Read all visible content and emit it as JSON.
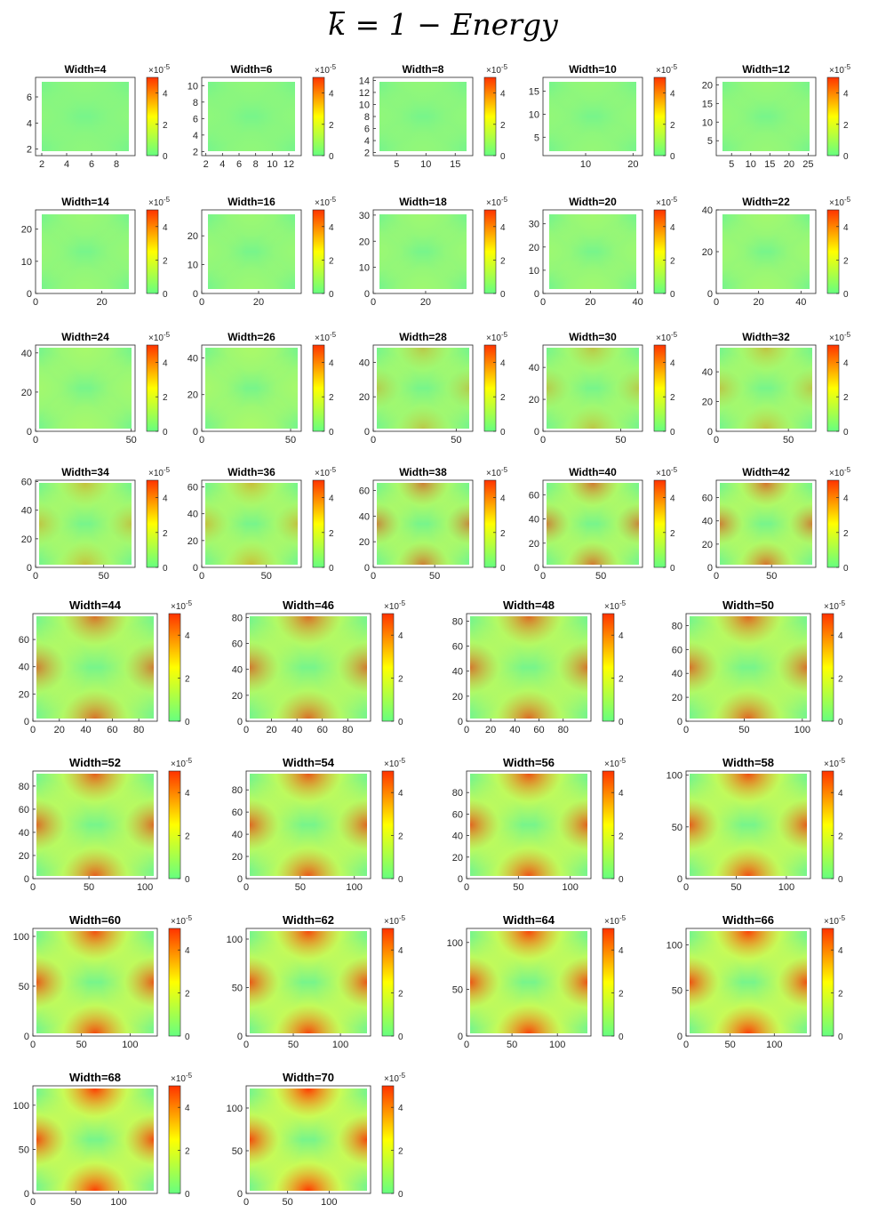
{
  "figure": {
    "title_symbol": "k",
    "title_rest": " = 1  − Energy"
  },
  "colorbar": {
    "exponent_label": "×10",
    "exponent": "-5",
    "ticks": [
      "0",
      "2",
      "4"
    ],
    "range": [
      0,
      5
    ],
    "colors": [
      "#66ff80",
      "#ffff00",
      "#ff3300"
    ]
  },
  "chart_data": [
    {
      "type": "heatmap",
      "title": "Width=4",
      "xticks": [
        "2",
        "4",
        "6",
        "8"
      ],
      "yticks": [
        "2",
        "4",
        "6"
      ],
      "xlim": [
        1.5,
        9.5
      ],
      "ylim": [
        1.5,
        7.5
      ],
      "max_energy": 0.2
    },
    {
      "type": "heatmap",
      "title": "Width=6",
      "xticks": [
        "2",
        "4",
        "6",
        "8",
        "10",
        "12"
      ],
      "yticks": [
        "2",
        "4",
        "6",
        "8",
        "10"
      ],
      "xlim": [
        1.5,
        13.5
      ],
      "ylim": [
        1.5,
        11
      ],
      "max_energy": 0.22
    },
    {
      "type": "heatmap",
      "title": "Width=8",
      "xticks": [
        "5",
        "10",
        "15"
      ],
      "yticks": [
        "2",
        "4",
        "6",
        "8",
        "10",
        "12",
        "14"
      ],
      "xlim": [
        1,
        18
      ],
      "ylim": [
        1.5,
        14.5
      ],
      "max_energy": 0.24
    },
    {
      "type": "heatmap",
      "title": "Width=10",
      "xticks": [
        "10",
        "20"
      ],
      "yticks": [
        "5",
        "10",
        "15"
      ],
      "xlim": [
        1,
        22
      ],
      "ylim": [
        1,
        18
      ],
      "max_energy": 0.26
    },
    {
      "type": "heatmap",
      "title": "Width=12",
      "xticks": [
        "5",
        "10",
        "15",
        "20",
        "25"
      ],
      "yticks": [
        "5",
        "10",
        "15",
        "20"
      ],
      "xlim": [
        1,
        27
      ],
      "ylim": [
        1,
        22
      ],
      "max_energy": 0.28
    },
    {
      "type": "heatmap",
      "title": "Width=14",
      "xticks": [
        "0",
        "20"
      ],
      "yticks": [
        "0",
        "10",
        "20"
      ],
      "xlim": [
        0,
        30
      ],
      "ylim": [
        0,
        26
      ],
      "max_energy": 0.3
    },
    {
      "type": "heatmap",
      "title": "Width=16",
      "xticks": [
        "0",
        "20"
      ],
      "yticks": [
        "0",
        "10",
        "20"
      ],
      "xlim": [
        0,
        35
      ],
      "ylim": [
        0,
        29
      ],
      "max_energy": 0.32
    },
    {
      "type": "heatmap",
      "title": "Width=18",
      "xticks": [
        "0",
        "20"
      ],
      "yticks": [
        "0",
        "10",
        "20",
        "30"
      ],
      "xlim": [
        0,
        38
      ],
      "ylim": [
        0,
        32
      ],
      "max_energy": 0.34
    },
    {
      "type": "heatmap",
      "title": "Width=20",
      "xticks": [
        "0",
        "20",
        "40"
      ],
      "yticks": [
        "0",
        "10",
        "20",
        "30"
      ],
      "xlim": [
        0,
        42
      ],
      "ylim": [
        0,
        36
      ],
      "max_energy": 0.36
    },
    {
      "type": "heatmap",
      "title": "Width=22",
      "xticks": [
        "0",
        "20",
        "40"
      ],
      "yticks": [
        "0",
        "20",
        "40"
      ],
      "xlim": [
        0,
        47
      ],
      "ylim": [
        0,
        40
      ],
      "max_energy": 0.38
    },
    {
      "type": "heatmap",
      "title": "Width=24",
      "xticks": [
        "0",
        "50"
      ],
      "yticks": [
        "0",
        "20",
        "40"
      ],
      "xlim": [
        0,
        52
      ],
      "ylim": [
        0,
        44
      ],
      "max_energy": 0.42
    },
    {
      "type": "heatmap",
      "title": "Width=26",
      "xticks": [
        "0",
        "50"
      ],
      "yticks": [
        "0",
        "20",
        "40"
      ],
      "xlim": [
        0,
        56
      ],
      "ylim": [
        0,
        47
      ],
      "max_energy": 0.45
    },
    {
      "type": "heatmap",
      "title": "Width=28",
      "xticks": [
        "0",
        "50"
      ],
      "yticks": [
        "0",
        "20",
        "40"
      ],
      "xlim": [
        0,
        60
      ],
      "ylim": [
        0,
        50
      ],
      "max_energy": 0.48
    },
    {
      "type": "heatmap",
      "title": "Width=30",
      "xticks": [
        "0",
        "50"
      ],
      "yticks": [
        "0",
        "20",
        "40"
      ],
      "xlim": [
        0,
        64
      ],
      "ylim": [
        0,
        54
      ],
      "max_energy": 0.5
    },
    {
      "type": "heatmap",
      "title": "Width=32",
      "xticks": [
        "0",
        "50"
      ],
      "yticks": [
        "0",
        "20",
        "40"
      ],
      "xlim": [
        0,
        69
      ],
      "ylim": [
        0,
        58
      ],
      "max_energy": 0.53
    },
    {
      "type": "heatmap",
      "title": "Width=34",
      "xticks": [
        "0",
        "50"
      ],
      "yticks": [
        "0",
        "20",
        "40",
        "60"
      ],
      "xlim": [
        0,
        73
      ],
      "ylim": [
        0,
        61
      ],
      "max_energy": 0.56
    },
    {
      "type": "heatmap",
      "title": "Width=36",
      "xticks": [
        "0",
        "50"
      ],
      "yticks": [
        "0",
        "20",
        "40",
        "60"
      ],
      "xlim": [
        0,
        77
      ],
      "ylim": [
        0,
        65
      ],
      "max_energy": 0.59
    },
    {
      "type": "heatmap",
      "title": "Width=38",
      "xticks": [
        "0",
        "50"
      ],
      "yticks": [
        "0",
        "20",
        "40",
        "60"
      ],
      "xlim": [
        0,
        81
      ],
      "ylim": [
        0,
        68
      ],
      "max_energy": 0.62
    },
    {
      "type": "heatmap",
      "title": "Width=40",
      "xticks": [
        "0",
        "50"
      ],
      "yticks": [
        "0",
        "20",
        "40",
        "60"
      ],
      "xlim": [
        0,
        86
      ],
      "ylim": [
        0,
        72
      ],
      "max_energy": 0.65
    },
    {
      "type": "heatmap",
      "title": "Width=42",
      "xticks": [
        "0",
        "50"
      ],
      "yticks": [
        "0",
        "20",
        "40",
        "60"
      ],
      "xlim": [
        0,
        90
      ],
      "ylim": [
        0,
        75
      ],
      "max_energy": 0.68
    },
    {
      "type": "heatmap",
      "title": "Width=44",
      "xticks": [
        "0",
        "20",
        "40",
        "60",
        "80"
      ],
      "yticks": [
        "0",
        "20",
        "40",
        "60"
      ],
      "xlim": [
        0,
        94
      ],
      "ylim": [
        0,
        79
      ],
      "max_energy": 0.7
    },
    {
      "type": "heatmap",
      "title": "Width=46",
      "xticks": [
        "0",
        "20",
        "40",
        "60",
        "80"
      ],
      "yticks": [
        "0",
        "20",
        "40",
        "60",
        "80"
      ],
      "xlim": [
        0,
        98
      ],
      "ylim": [
        0,
        83
      ],
      "max_energy": 0.72
    },
    {
      "type": "heatmap",
      "title": "Width=48",
      "xticks": [
        "0",
        "20",
        "40",
        "60",
        "80"
      ],
      "yticks": [
        "0",
        "20",
        "40",
        "60",
        "80"
      ],
      "xlim": [
        0,
        103
      ],
      "ylim": [
        0,
        86
      ],
      "max_energy": 0.74
    },
    {
      "type": "heatmap",
      "title": "Width=50",
      "xticks": [
        "0",
        "50",
        "100"
      ],
      "yticks": [
        "0",
        "20",
        "40",
        "60",
        "80"
      ],
      "xlim": [
        0,
        107
      ],
      "ylim": [
        0,
        90
      ],
      "max_energy": 0.76
    },
    {
      "type": "heatmap",
      "title": "Width=52",
      "xticks": [
        "0",
        "50",
        "100"
      ],
      "yticks": [
        "0",
        "20",
        "40",
        "60",
        "80"
      ],
      "xlim": [
        0,
        111
      ],
      "ylim": [
        0,
        93
      ],
      "max_energy": 0.8
    },
    {
      "type": "heatmap",
      "title": "Width=54",
      "xticks": [
        "0",
        "50",
        "100"
      ],
      "yticks": [
        "0",
        "20",
        "40",
        "60",
        "80"
      ],
      "xlim": [
        0,
        115
      ],
      "ylim": [
        0,
        97
      ],
      "max_energy": 0.83
    },
    {
      "type": "heatmap",
      "title": "Width=56",
      "xticks": [
        "0",
        "50",
        "100"
      ],
      "yticks": [
        "0",
        "20",
        "40",
        "60",
        "80"
      ],
      "xlim": [
        0,
        120
      ],
      "ylim": [
        0,
        100
      ],
      "max_energy": 0.86
    },
    {
      "type": "heatmap",
      "title": "Width=58",
      "xticks": [
        "0",
        "50",
        "100"
      ],
      "yticks": [
        "0",
        "50",
        "100"
      ],
      "xlim": [
        0,
        124
      ],
      "ylim": [
        0,
        104
      ],
      "max_energy": 0.88
    },
    {
      "type": "heatmap",
      "title": "Width=60",
      "xticks": [
        "0",
        "50",
        "100"
      ],
      "yticks": [
        "0",
        "50",
        "100"
      ],
      "xlim": [
        0,
        128
      ],
      "ylim": [
        0,
        108
      ],
      "max_energy": 0.9
    },
    {
      "type": "heatmap",
      "title": "Width=62",
      "xticks": [
        "0",
        "50",
        "100"
      ],
      "yticks": [
        "0",
        "50",
        "100"
      ],
      "xlim": [
        0,
        132
      ],
      "ylim": [
        0,
        111
      ],
      "max_energy": 0.92
    },
    {
      "type": "heatmap",
      "title": "Width=64",
      "xticks": [
        "0",
        "50",
        "100"
      ],
      "yticks": [
        "0",
        "50",
        "100"
      ],
      "xlim": [
        0,
        137
      ],
      "ylim": [
        0,
        115
      ],
      "max_energy": 0.94
    },
    {
      "type": "heatmap",
      "title": "Width=66",
      "xticks": [
        "0",
        "50",
        "100"
      ],
      "yticks": [
        "0",
        "50",
        "100"
      ],
      "xlim": [
        0,
        141
      ],
      "ylim": [
        0,
        118
      ],
      "max_energy": 0.96
    },
    {
      "type": "heatmap",
      "title": "Width=68",
      "xticks": [
        "0",
        "50",
        "100"
      ],
      "yticks": [
        "0",
        "50",
        "100"
      ],
      "xlim": [
        0,
        145
      ],
      "ylim": [
        0,
        122
      ],
      "max_energy": 0.98
    },
    {
      "type": "heatmap",
      "title": "Width=70",
      "xticks": [
        "0",
        "50",
        "100"
      ],
      "yticks": [
        "0",
        "50",
        "100"
      ],
      "xlim": [
        0,
        150
      ],
      "ylim": [
        0,
        126
      ],
      "max_energy": 1.0
    }
  ]
}
